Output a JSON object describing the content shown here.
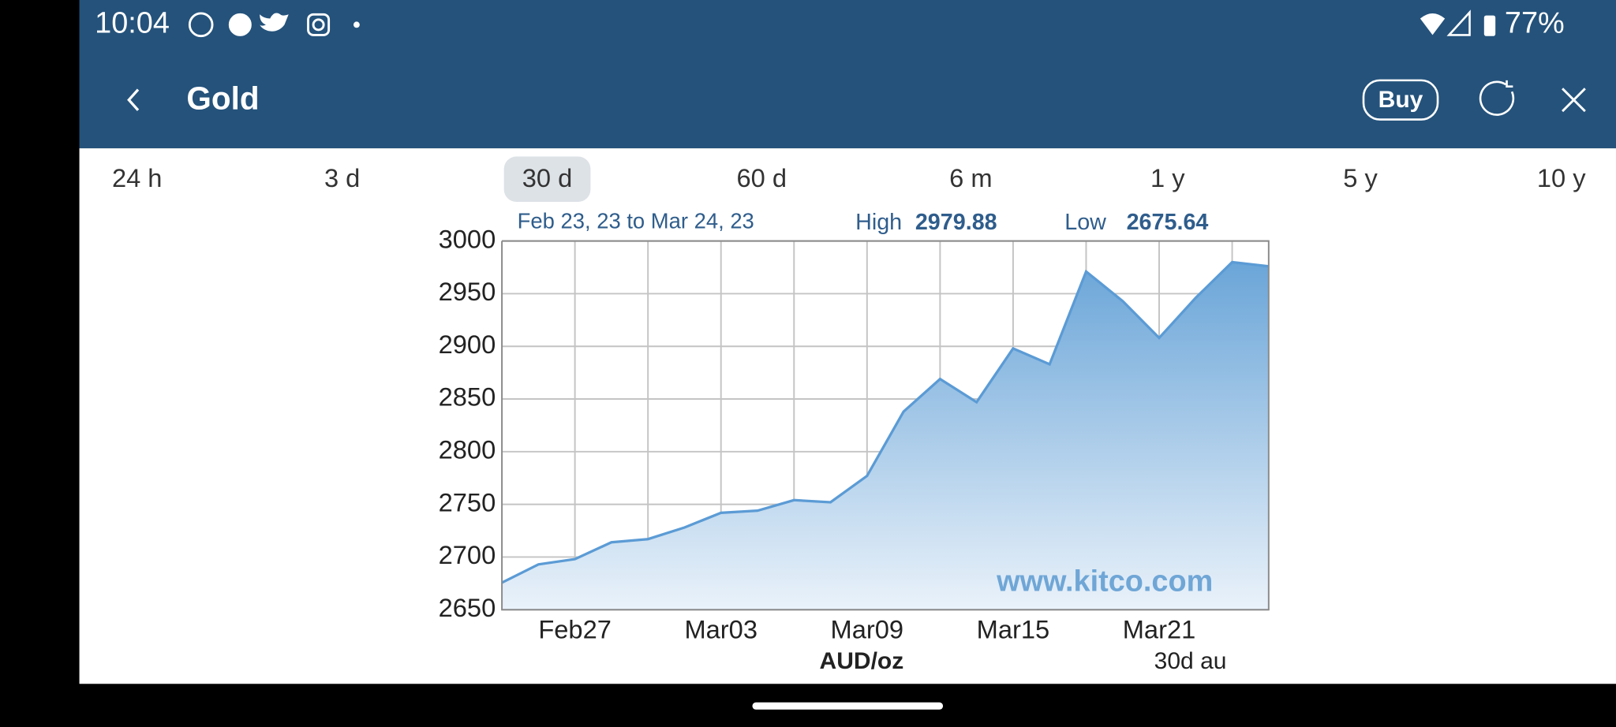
{
  "status_bar": {
    "time": "10:04",
    "battery": "77%"
  },
  "app_bar": {
    "title": "Gold",
    "buy": "Buy"
  },
  "tabs": {
    "items": [
      "24 h",
      "3 d",
      "30 d",
      "60 d",
      "6 m",
      "1 y",
      "5 y",
      "10 y"
    ],
    "selected": 2
  },
  "chart_data": {
    "type": "area",
    "subtitle": "Feb 23, 23 to Mar 24, 23",
    "high_label": "High",
    "high": 2979.88,
    "low_label": "Low",
    "low": 2675.64,
    "x_label": "AUD/oz",
    "note": "30d au",
    "watermark": "www.kitco.com",
    "categories": [
      null,
      null,
      "Feb27",
      null,
      null,
      null,
      "Mar03",
      null,
      null,
      null,
      "Mar09",
      null,
      null,
      null,
      "Mar15",
      null,
      null,
      null,
      "Mar21",
      null,
      null,
      null
    ],
    "values": [
      2675.64,
      2693,
      2698,
      2714,
      2717,
      2728,
      2742,
      2744,
      2754,
      2752,
      2777,
      2838,
      2869,
      2847,
      2898,
      2883,
      2971,
      2943,
      2908,
      2946,
      2979.88,
      2976
    ],
    "color": "#5b9bd5",
    "ylim": [
      2650,
      3000
    ],
    "yticks": [
      2650,
      2700,
      2750,
      2800,
      2850,
      2900,
      2950,
      3000
    ],
    "grid": true
  }
}
